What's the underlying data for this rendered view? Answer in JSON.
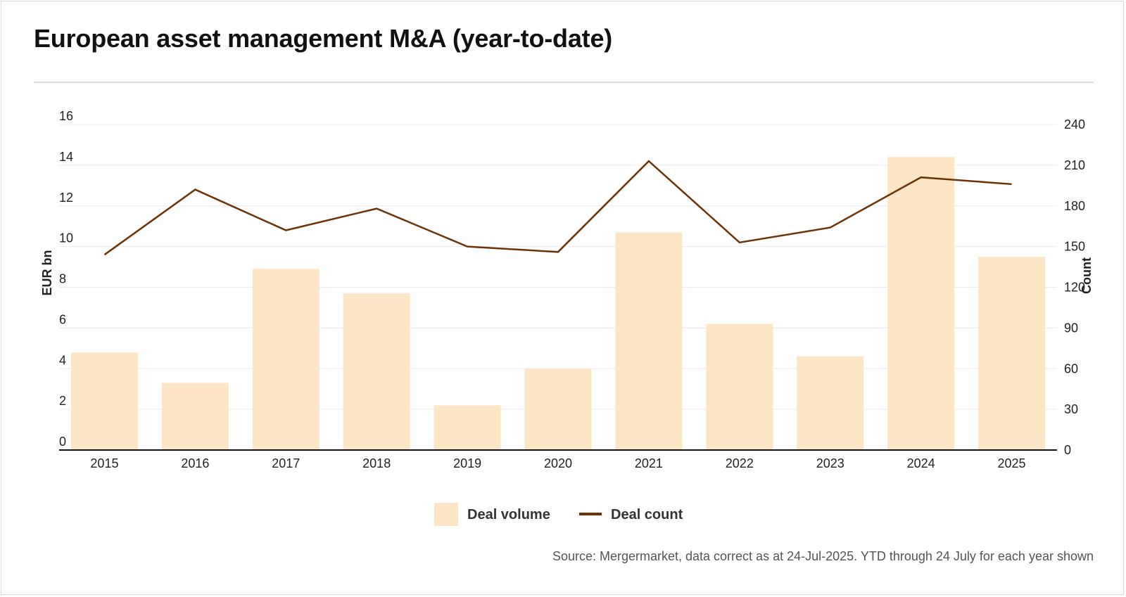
{
  "title": "European asset management M&A (year-to-date)",
  "source": "Source: Mergermarket, data correct as at 24-Jul-2025. YTD through 24 July for each year shown",
  "colors": {
    "bar": "#fce6c6",
    "line": "#6b3306",
    "grid": "#ececec",
    "axis": "#111111"
  },
  "chart_data": {
    "type": "bar",
    "categories": [
      "2015",
      "2016",
      "2017",
      "2018",
      "2019",
      "2020",
      "2021",
      "2022",
      "2023",
      "2024",
      "2025"
    ],
    "series": [
      {
        "name": "Deal volume",
        "type": "bar",
        "axis": "left",
        "values": [
          4.8,
          3.3,
          8.9,
          7.7,
          2.2,
          4.0,
          10.7,
          6.2,
          4.6,
          14.4,
          9.5
        ]
      },
      {
        "name": "Deal count",
        "type": "line",
        "axis": "right",
        "values": [
          144,
          192,
          162,
          178,
          150,
          146,
          213,
          153,
          164,
          201,
          196
        ]
      }
    ],
    "ylabel": "EUR bn",
    "y2label": "Count",
    "ylim": [
      0,
      16
    ],
    "y2lim": [
      0,
      240
    ],
    "yticks": [
      0,
      2,
      4,
      6,
      8,
      10,
      12,
      14,
      16
    ],
    "y2ticks": [
      0,
      30,
      60,
      90,
      120,
      150,
      180,
      210,
      240
    ],
    "grid": true,
    "legend": "bottom-center"
  }
}
